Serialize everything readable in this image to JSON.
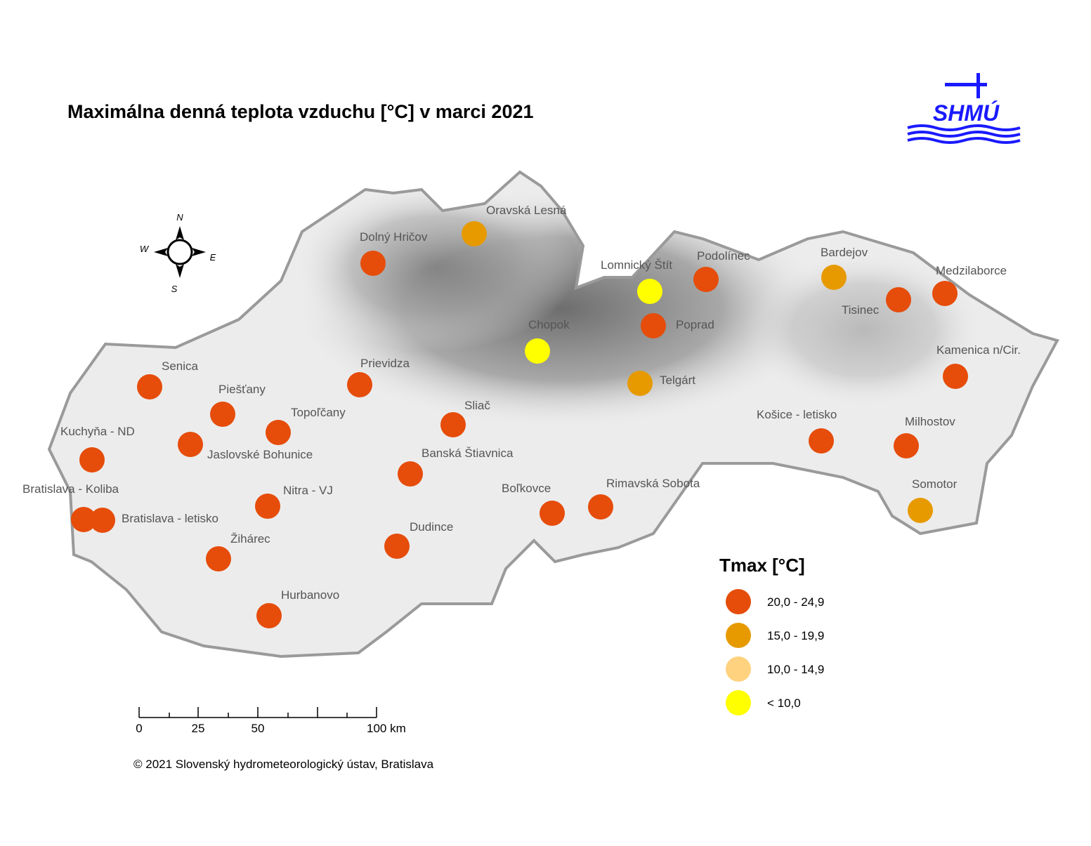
{
  "title": "Maximálna denná teplota vzduchu [°C] v marci 2021",
  "logo": "SHMÚ",
  "compass": {
    "n": "N",
    "w": "W",
    "e": "E",
    "s": "S"
  },
  "legend": {
    "title": "Tmax [°C]",
    "items": [
      {
        "label": "20,0 - 24,9",
        "color": "#e64c0a"
      },
      {
        "label": "15,0 - 19,9",
        "color": "#e69a00"
      },
      {
        "label": "10,0 - 14,9",
        "color": "#ffd27f"
      },
      {
        "label": "< 10,0",
        "color": "#ffff00"
      }
    ]
  },
  "scale_bar": {
    "labels": [
      "0",
      "25",
      "50",
      "100 km"
    ]
  },
  "stations": [
    {
      "name": "Oravská Lesná",
      "class": 1
    },
    {
      "name": "Dolný Hričov",
      "class": 0
    },
    {
      "name": "Lomnický Štít",
      "class": 3
    },
    {
      "name": "Podolínec",
      "class": 0
    },
    {
      "name": "Bardejov",
      "class": 1
    },
    {
      "name": "Medzilaborce",
      "class": 0
    },
    {
      "name": "Tisinec",
      "class": 0
    },
    {
      "name": "Poprad",
      "class": 0
    },
    {
      "name": "Chopok",
      "class": 3
    },
    {
      "name": "Kamenica n/Cir.",
      "class": 0
    },
    {
      "name": "Telgárt",
      "class": 1
    },
    {
      "name": "Prievidza",
      "class": 0
    },
    {
      "name": "Senica",
      "class": 0
    },
    {
      "name": "Piešťany",
      "class": 0
    },
    {
      "name": "Topoľčany",
      "class": 0
    },
    {
      "name": "Sliač",
      "class": 0
    },
    {
      "name": "Košice - letisko",
      "class": 0
    },
    {
      "name": "Milhostov",
      "class": 0
    },
    {
      "name": "Kuchyňa - ND",
      "class": 0
    },
    {
      "name": "Jaslovské Bohunice",
      "class": 0
    },
    {
      "name": "Banská Štiavnica",
      "class": 0
    },
    {
      "name": "Bratislava - Koliba",
      "class": 0
    },
    {
      "name": "Bratislava - letisko",
      "class": 0
    },
    {
      "name": "Nitra - VJ",
      "class": 0
    },
    {
      "name": "Boľkovce",
      "class": 0
    },
    {
      "name": "Rimavská Sobota",
      "class": 0
    },
    {
      "name": "Somotor",
      "class": 1
    },
    {
      "name": "Žihárec",
      "class": 0
    },
    {
      "name": "Dudince",
      "class": 0
    },
    {
      "name": "Hurbanovo",
      "class": 0
    }
  ],
  "copyright": "© 2021 Slovenský hydrometeorologický ústav, Bratislava"
}
